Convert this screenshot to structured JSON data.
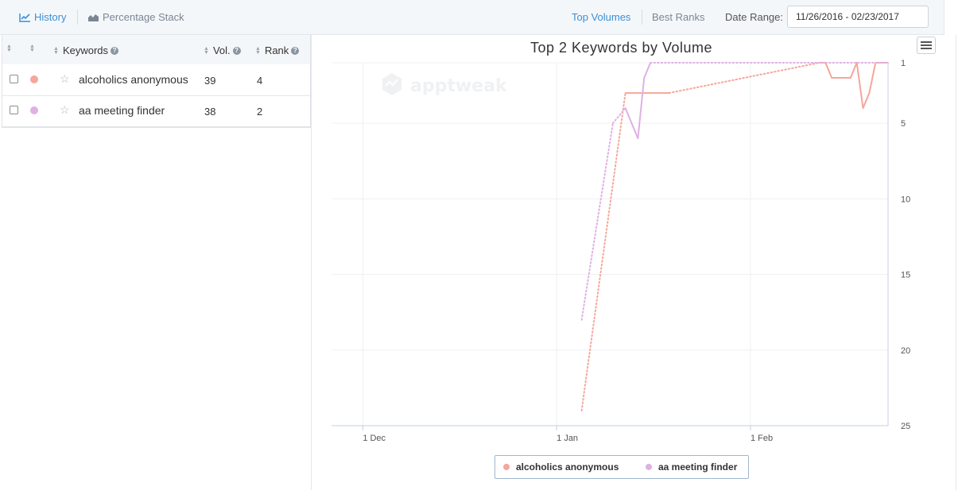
{
  "toolbar": {
    "history_label": "History",
    "percentage_stack_label": "Percentage Stack",
    "top_volumes_label": "Top Volumes",
    "best_ranks_label": "Best Ranks",
    "date_range_label": "Date Range:",
    "date_range_value": "11/26/2016 - 02/23/2017"
  },
  "table": {
    "headers": {
      "keywords": "Keywords",
      "vol": "Vol.",
      "rank": "Rank"
    },
    "rows": [
      {
        "keyword": "alcoholics anonymous",
        "vol": "39",
        "rank": "4",
        "color": "#f4a79b"
      },
      {
        "keyword": "aa meeting finder",
        "vol": "38",
        "rank": "2",
        "color": "#dfb0e4"
      }
    ]
  },
  "watermark": "apptweak",
  "chart_data": {
    "type": "line",
    "title": "Top 2 Keywords by Volume",
    "x_tick_labels": [
      "1 Dec",
      "1 Jan",
      "1 Feb"
    ],
    "x_range": [
      "2016-11-26",
      "2017-02-23"
    ],
    "y_ticks": [
      1,
      5,
      10,
      15,
      20,
      25
    ],
    "ylim": [
      1,
      25
    ],
    "y_reversed": true,
    "y_axis_side": "right",
    "grid": true,
    "legend_position": "bottom-center",
    "series": [
      {
        "name": "alcoholics anonymous",
        "color": "#f4a79b",
        "points": [
          {
            "x": "2017-01-05",
            "y": 24,
            "gap": false
          },
          {
            "x": "2017-01-12",
            "y": 3,
            "gap": true
          },
          {
            "x": "2017-01-19",
            "y": 3,
            "gap": false
          },
          {
            "x": "2017-02-12",
            "y": 1,
            "gap": true
          },
          {
            "x": "2017-02-13",
            "y": 1,
            "gap": false
          },
          {
            "x": "2017-02-14",
            "y": 2,
            "gap": false
          },
          {
            "x": "2017-02-17",
            "y": 2,
            "gap": false
          },
          {
            "x": "2017-02-18",
            "y": 1,
            "gap": false
          },
          {
            "x": "2017-02-19",
            "y": 4,
            "gap": false
          },
          {
            "x": "2017-02-20",
            "y": 3,
            "gap": false
          },
          {
            "x": "2017-02-21",
            "y": 1,
            "gap": false
          },
          {
            "x": "2017-02-23",
            "y": 1,
            "gap": false
          }
        ]
      },
      {
        "name": "aa meeting finder",
        "color": "#dfb0e4",
        "points": [
          {
            "x": "2017-01-05",
            "y": 18,
            "gap": false
          },
          {
            "x": "2017-01-10",
            "y": 5,
            "gap": true
          },
          {
            "x": "2017-01-12",
            "y": 4,
            "gap": true
          },
          {
            "x": "2017-01-14",
            "y": 6,
            "gap": false
          },
          {
            "x": "2017-01-15",
            "y": 2,
            "gap": false
          },
          {
            "x": "2017-01-16",
            "y": 1,
            "gap": false
          },
          {
            "x": "2017-02-23",
            "y": 1,
            "gap": true
          }
        ]
      }
    ]
  }
}
